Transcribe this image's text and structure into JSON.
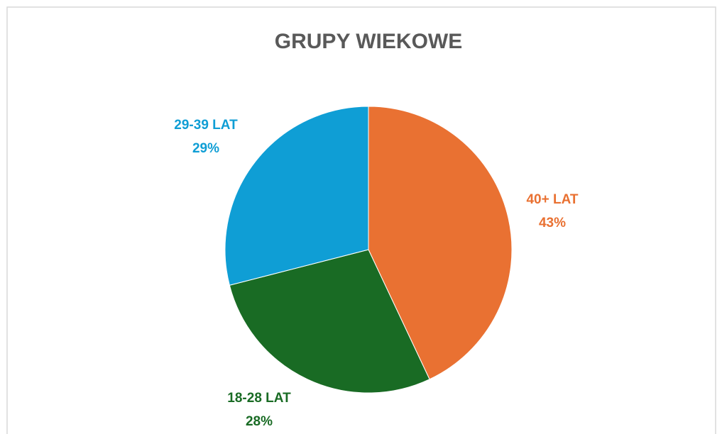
{
  "chart_data": {
    "type": "pie",
    "title": "GRUPY WIEKOWE",
    "categories": [
      "40+ LAT",
      "18-28 LAT",
      "29-39 LAT"
    ],
    "values": [
      43,
      28,
      29
    ],
    "value_labels": [
      "43%",
      "28%",
      "29%"
    ],
    "colors": [
      "#E97132",
      "#196B24",
      "#0F9ED5"
    ]
  }
}
